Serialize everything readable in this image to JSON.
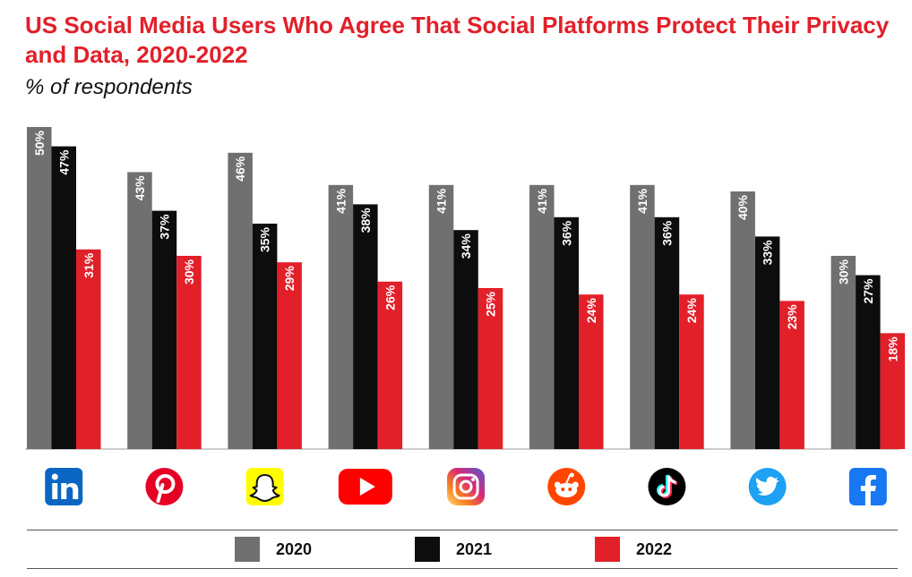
{
  "chart_data": {
    "type": "bar",
    "title": "US Social Media Users Who Agree That Social Platforms Protect Their Privacy and Data, 2020-2022",
    "subtitle": "% of respondents",
    "categories": [
      "LinkedIn",
      "Pinterest",
      "Snapchat",
      "YouTube",
      "Instagram",
      "Reddit",
      "TikTok",
      "Twitter",
      "Facebook"
    ],
    "category_icons": [
      "linkedin-icon",
      "pinterest-icon",
      "snapchat-icon",
      "youtube-icon",
      "instagram-icon",
      "reddit-icon",
      "tiktok-icon",
      "twitter-icon",
      "facebook-icon"
    ],
    "series": [
      {
        "name": "2020",
        "color": "#707070",
        "values": [
          50,
          43,
          46,
          41,
          41,
          41,
          41,
          40,
          30
        ]
      },
      {
        "name": "2021",
        "color": "#0d0d0d",
        "values": [
          47,
          37,
          35,
          38,
          34,
          36,
          36,
          33,
          27
        ]
      },
      {
        "name": "2022",
        "color": "#e2202a",
        "values": [
          31,
          30,
          29,
          26,
          25,
          24,
          24,
          23,
          18
        ]
      }
    ],
    "value_suffix": "%",
    "ylim": [
      0,
      50
    ],
    "legend_position": "bottom"
  }
}
